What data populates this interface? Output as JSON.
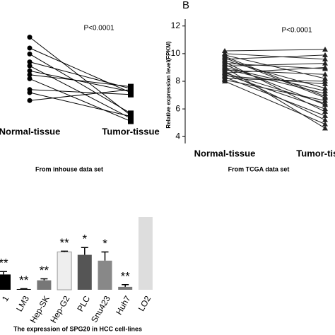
{
  "chart_data": [
    {
      "type": "line",
      "panel": null,
      "annotation": "P<0.0001",
      "caption": "From inhouse data set",
      "categories": [
        "Normal-tissue",
        "Tumor-tissue"
      ],
      "markers": [
        "circle",
        "square"
      ],
      "color": "#000000",
      "ylim": [
        0,
        10
      ],
      "series": [
        {
          "values": [
            9.1,
            1.2
          ]
        },
        {
          "values": [
            8.0,
            3.5
          ]
        },
        {
          "values": [
            7.4,
            1.4
          ]
        },
        {
          "values": [
            6.6,
            3.9
          ]
        },
        {
          "values": [
            6.2,
            0.9
          ]
        },
        {
          "values": [
            5.7,
            3.6
          ]
        },
        {
          "values": [
            5.3,
            4.1
          ]
        },
        {
          "values": [
            4.9,
            0.6
          ]
        },
        {
          "values": [
            3.8,
            3.3
          ]
        },
        {
          "values": [
            3.5,
            1.1
          ]
        },
        {
          "values": [
            2.7,
            3.8
          ]
        }
      ]
    },
    {
      "type": "line",
      "panel": "B",
      "annotation": "P<0.0001",
      "caption": "From TCGA data set",
      "ylabel": "Relative expression level(FPKM)",
      "categories": [
        "Normal-tissue",
        "Tumor-tissue"
      ],
      "markers": [
        "triangle",
        "triangle"
      ],
      "color": "#222222",
      "ylim": [
        3.5,
        12.5
      ],
      "yticks": [
        4,
        6,
        8,
        10,
        12
      ],
      "series": [
        {
          "values": [
            10.2,
            10.3
          ]
        },
        {
          "values": [
            10.0,
            9.6
          ]
        },
        {
          "values": [
            9.9,
            8.2
          ]
        },
        {
          "values": [
            9.7,
            6.8
          ]
        },
        {
          "values": [
            9.6,
            9.9
          ]
        },
        {
          "values": [
            9.5,
            7.5
          ]
        },
        {
          "values": [
            9.4,
            5.8
          ]
        },
        {
          "values": [
            9.3,
            8.9
          ]
        },
        {
          "values": [
            9.2,
            6.3
          ]
        },
        {
          "values": [
            9.1,
            9.3
          ]
        },
        {
          "values": [
            9.0,
            4.6
          ]
        },
        {
          "values": [
            8.9,
            7.1
          ]
        },
        {
          "values": [
            8.8,
            8.5
          ]
        },
        {
          "values": [
            8.7,
            5.2
          ]
        },
        {
          "values": [
            8.6,
            9.0
          ]
        },
        {
          "values": [
            8.5,
            6.0
          ]
        },
        {
          "values": [
            8.4,
            7.8
          ]
        },
        {
          "values": [
            8.3,
            5.5
          ]
        },
        {
          "values": [
            8.2,
            8.0
          ]
        },
        {
          "values": [
            8.1,
            6.6
          ]
        },
        {
          "values": [
            8.0,
            4.9
          ]
        },
        {
          "values": [
            9.8,
            6.9
          ]
        },
        {
          "values": [
            9.0,
            7.3
          ]
        },
        {
          "values": [
            8.6,
            6.4
          ]
        }
      ]
    },
    {
      "type": "bar",
      "caption": "The expression of SPG20 in HCC cell-lines",
      "categories": [
        "1",
        "LM3",
        "Hep-SK",
        "Hep-G2",
        "PLC",
        "Snu423",
        "Huh7",
        "LO2"
      ],
      "values": [
        0.21,
        0.01,
        0.13,
        0.52,
        0.48,
        0.4,
        0.04,
        1.0
      ],
      "errors": [
        0.04,
        0.005,
        0.02,
        0.01,
        0.1,
        0.12,
        0.03,
        0
      ],
      "annotations": [
        "**",
        "**",
        "**",
        "**",
        "*",
        "*",
        "**",
        null
      ],
      "colors": [
        "#000000",
        "#000000",
        "#777777",
        "#eeeeee",
        "#555555",
        "#888888",
        "#777777",
        "#dddddd"
      ],
      "ylim": [
        0,
        1
      ]
    }
  ]
}
